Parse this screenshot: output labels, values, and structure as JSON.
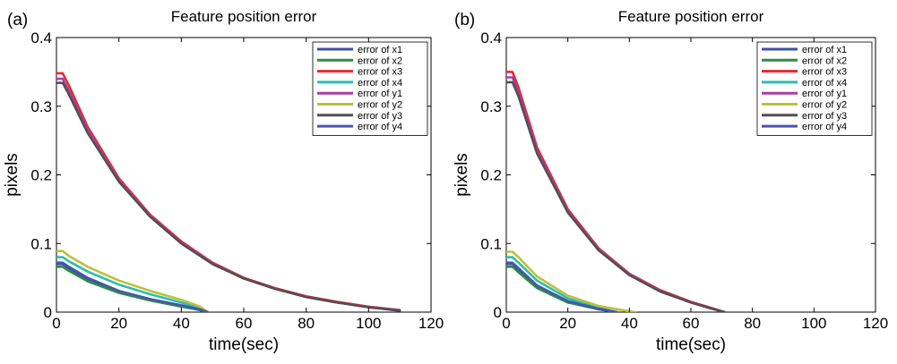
{
  "chart_data": [
    {
      "type": "line",
      "panel_label": "(a)",
      "title": "Feature position error",
      "xlabel": "time(sec)",
      "ylabel": "pixels",
      "xlim": [
        0,
        120
      ],
      "ylim": [
        0,
        0.4
      ],
      "xticks": [
        0,
        20,
        40,
        60,
        80,
        100,
        120
      ],
      "yticks": [
        0,
        0.1,
        0.2,
        0.3,
        0.4
      ],
      "ytick_labels": [
        "0",
        "0.1",
        "0.2",
        "0.3",
        "0.4"
      ],
      "grid": false,
      "legend": "top-right",
      "series": [
        {
          "name": "error of x1",
          "color": "#3c4fa8",
          "x": [
            0,
            2,
            4,
            10,
            20,
            30,
            40,
            46,
            48.5
          ],
          "y": [
            0.07,
            0.07,
            0.064,
            0.048,
            0.03,
            0.018,
            0.009,
            0.003,
            0
          ]
        },
        {
          "name": "error of x2",
          "color": "#2e8c43",
          "x": [
            0,
            2,
            4,
            10,
            20,
            30,
            40,
            46,
            48.5
          ],
          "y": [
            0.066,
            0.066,
            0.06,
            0.045,
            0.028,
            0.017,
            0.008,
            0.003,
            0
          ]
        },
        {
          "name": "error of x3",
          "color": "#e8282e",
          "x": [
            0,
            2,
            4,
            10,
            20,
            30,
            40,
            50,
            60,
            70,
            80,
            90,
            100,
            110
          ],
          "y": [
            0.348,
            0.348,
            0.33,
            0.27,
            0.195,
            0.142,
            0.103,
            0.072,
            0.05,
            0.035,
            0.023,
            0.015,
            0.008,
            0.003
          ]
        },
        {
          "name": "error of x4",
          "color": "#2bbdb3",
          "x": [
            0,
            2,
            4,
            10,
            20,
            30,
            40,
            46,
            48.5
          ],
          "y": [
            0.08,
            0.08,
            0.074,
            0.059,
            0.04,
            0.026,
            0.014,
            0.006,
            0
          ]
        },
        {
          "name": "error of y1",
          "color": "#a83ea8",
          "x": [
            0,
            2,
            4,
            10,
            20,
            30,
            40,
            50,
            60,
            70,
            80,
            90,
            100,
            110
          ],
          "y": [
            0.34,
            0.34,
            0.322,
            0.265,
            0.192,
            0.14,
            0.101,
            0.071,
            0.049,
            0.034,
            0.022,
            0.014,
            0.007,
            0.003
          ]
        },
        {
          "name": "error of y2",
          "color": "#b9c23a",
          "x": [
            0,
            2,
            4,
            10,
            20,
            30,
            40,
            46,
            48.5
          ],
          "y": [
            0.089,
            0.089,
            0.082,
            0.066,
            0.046,
            0.031,
            0.018,
            0.008,
            0
          ]
        },
        {
          "name": "error of y3",
          "color": "#505050",
          "x": [
            0,
            2,
            4,
            10,
            20,
            30,
            40,
            50,
            60,
            70,
            80,
            90,
            100,
            110
          ],
          "y": [
            0.334,
            0.334,
            0.317,
            0.261,
            0.19,
            0.139,
            0.1,
            0.07,
            0.049,
            0.034,
            0.022,
            0.014,
            0.007,
            0.002
          ]
        },
        {
          "name": "error of y4",
          "color": "#4656b0",
          "x": [
            0,
            2,
            4,
            10,
            20,
            30,
            40,
            46,
            48.5
          ],
          "y": [
            0.072,
            0.072,
            0.066,
            0.05,
            0.031,
            0.019,
            0.01,
            0.004,
            0
          ]
        }
      ]
    },
    {
      "type": "line",
      "panel_label": "(b)",
      "title": "Feature position error",
      "xlabel": "time(sec)",
      "ylabel": "pixels",
      "xlim": [
        0,
        120
      ],
      "ylim": [
        0,
        0.4
      ],
      "xticks": [
        0,
        20,
        40,
        60,
        80,
        100,
        120
      ],
      "yticks": [
        0,
        0.1,
        0.2,
        0.3,
        0.4
      ],
      "ytick_labels": [
        "0",
        "0.1",
        "0.2",
        "0.3",
        "0.4"
      ],
      "grid": false,
      "legend": "top-right",
      "series": [
        {
          "name": "error of x1",
          "color": "#3c4fa8",
          "x": [
            0,
            2,
            4,
            10,
            20,
            30,
            36
          ],
          "y": [
            0.07,
            0.07,
            0.062,
            0.038,
            0.015,
            0.004,
            0
          ]
        },
        {
          "name": "error of x2",
          "color": "#2e8c43",
          "x": [
            0,
            2,
            4,
            10,
            20,
            30,
            36
          ],
          "y": [
            0.066,
            0.066,
            0.058,
            0.035,
            0.014,
            0.004,
            0
          ]
        },
        {
          "name": "error of x3",
          "color": "#e8282e",
          "x": [
            0,
            2,
            4,
            10,
            20,
            30,
            40,
            50,
            60,
            66,
            71
          ],
          "y": [
            0.35,
            0.35,
            0.327,
            0.24,
            0.15,
            0.093,
            0.056,
            0.032,
            0.015,
            0.007,
            0
          ]
        },
        {
          "name": "error of x4",
          "color": "#2bbdb3",
          "x": [
            0,
            2,
            4,
            10,
            20,
            30,
            36
          ],
          "y": [
            0.08,
            0.08,
            0.072,
            0.046,
            0.02,
            0.006,
            0
          ]
        },
        {
          "name": "error of y1",
          "color": "#a83ea8",
          "x": [
            0,
            2,
            4,
            10,
            20,
            30,
            40,
            50,
            60,
            66,
            71
          ],
          "y": [
            0.342,
            0.342,
            0.32,
            0.235,
            0.147,
            0.091,
            0.055,
            0.031,
            0.014,
            0.006,
            0
          ]
        },
        {
          "name": "error of y2",
          "color": "#b9c23a",
          "x": [
            0,
            2,
            4,
            10,
            20,
            30,
            40,
            42
          ],
          "y": [
            0.088,
            0.088,
            0.08,
            0.052,
            0.024,
            0.009,
            0.001,
            0
          ]
        },
        {
          "name": "error of y3",
          "color": "#505050",
          "x": [
            0,
            2,
            4,
            10,
            20,
            30,
            40,
            50,
            60,
            66,
            71
          ],
          "y": [
            0.335,
            0.335,
            0.314,
            0.231,
            0.145,
            0.09,
            0.054,
            0.03,
            0.014,
            0.006,
            0
          ]
        },
        {
          "name": "error of y4",
          "color": "#4656b0",
          "x": [
            0,
            2,
            4,
            10,
            20,
            30,
            36
          ],
          "y": [
            0.072,
            0.072,
            0.064,
            0.039,
            0.016,
            0.005,
            0
          ]
        }
      ]
    }
  ]
}
